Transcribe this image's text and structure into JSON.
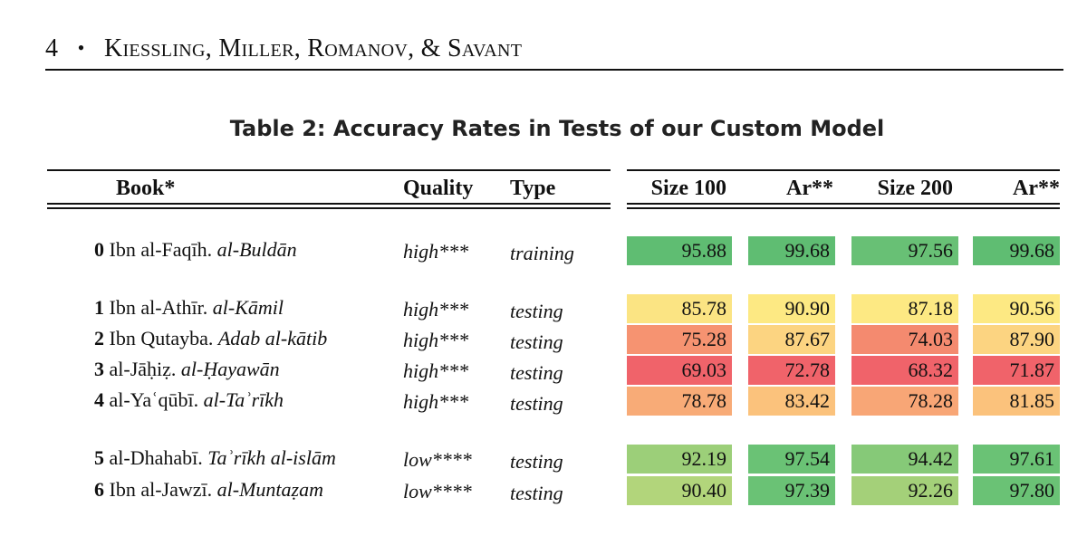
{
  "running_header": {
    "page_number": "4",
    "bullet": "•",
    "authors": "Kiessling, Miller, Romanov, & Savant"
  },
  "caption": "Table 2: Accuracy Rates in Tests of our Custom Model",
  "table": {
    "headers": {
      "book": "Book*",
      "quality": "Quality",
      "type": "Type",
      "size100": "Size 100",
      "ar1": "Ar**",
      "size200": "Size 200",
      "ar2": "Ar**"
    },
    "rows": [
      {
        "num": "0",
        "author": "Ibn al-Faqīh.",
        "title": "al-Buldān",
        "quality": "high***",
        "type": "training",
        "values": [
          "95.88",
          "99.68",
          "97.56",
          "99.68"
        ],
        "colors": [
          "#5fbd72",
          "#5fbd72",
          "#68c075",
          "#5fbd72"
        ]
      },
      {
        "num": "1",
        "author": "Ibn al-Athīr.",
        "title": "al-Kāmil",
        "quality": "high***",
        "type": "testing",
        "values": [
          "85.78",
          "90.90",
          "87.18",
          "90.56"
        ],
        "colors": [
          "#fbe483",
          "#fde983",
          "#fde983",
          "#fde983"
        ]
      },
      {
        "num": "2",
        "author": "Ibn Qutayba.",
        "title": "Adab al-kātib",
        "quality": "high***",
        "type": "testing",
        "values": [
          "75.28",
          "87.67",
          "74.03",
          "87.90"
        ],
        "colors": [
          "#f69371",
          "#fcd481",
          "#f48a6f",
          "#fcd481"
        ]
      },
      {
        "num": "3",
        "author": "al-Jāḥiẓ.",
        "title": "al-Ḥayawān",
        "quality": "high***",
        "type": "testing",
        "values": [
          "69.03",
          "72.78",
          "68.32",
          "71.87"
        ],
        "colors": [
          "#f0636a",
          "#f0636a",
          "#f0636a",
          "#f0636a"
        ]
      },
      {
        "num": "4",
        "author": "al-Yaʿqūbī.",
        "title": "al-Taʾrīkh",
        "quality": "high***",
        "type": "testing",
        "values": [
          "78.78",
          "83.42",
          "78.28",
          "81.85"
        ],
        "colors": [
          "#f8ab77",
          "#fbc27c",
          "#f8a676",
          "#fbc27c"
        ]
      },
      {
        "num": "5",
        "author": "al-Dhahabī.",
        "title": "Taʾrīkh al-islām",
        "quality": "low****",
        "type": "testing",
        "values": [
          "92.19",
          "97.54",
          "94.42",
          "97.61"
        ],
        "colors": [
          "#9ccf79",
          "#6ac275",
          "#86c978",
          "#6ac275"
        ]
      },
      {
        "num": "6",
        "author": "Ibn al-Jawzī.",
        "title": "al-Muntaẓam",
        "quality": "low****",
        "type": "testing",
        "values": [
          "90.40",
          "97.39",
          "92.26",
          "97.80"
        ],
        "colors": [
          "#b2d57b",
          "#6ac275",
          "#a4d079",
          "#6ac275"
        ]
      }
    ]
  }
}
